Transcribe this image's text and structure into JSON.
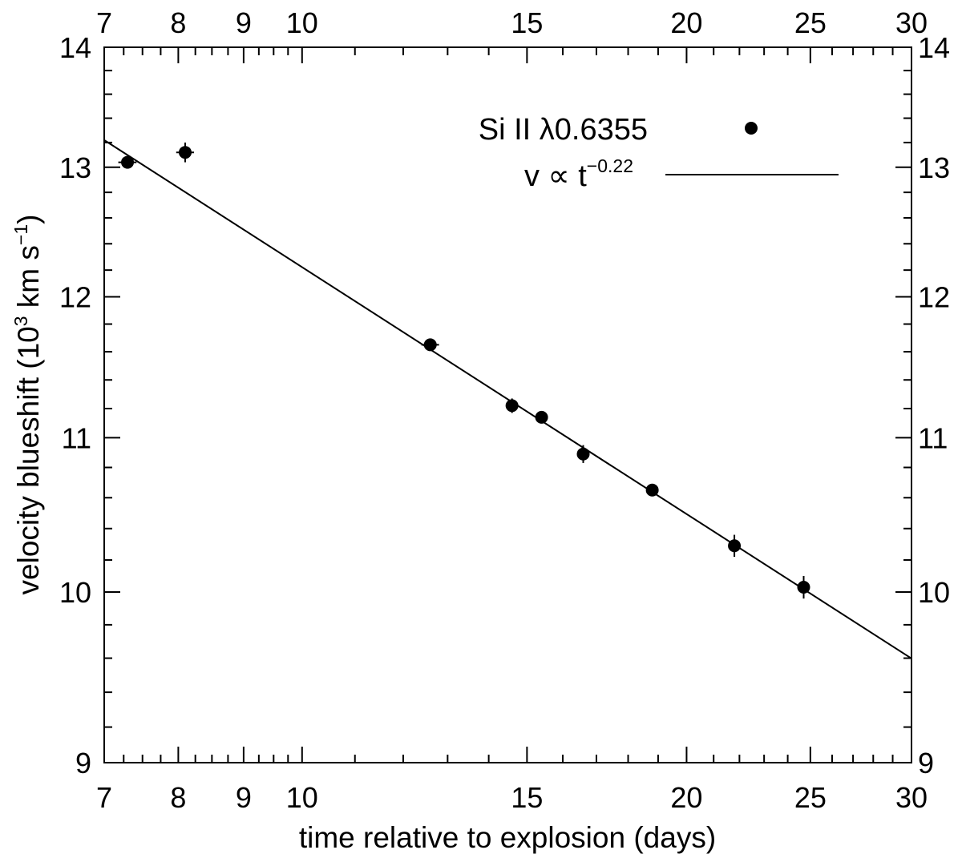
{
  "chart_data": {
    "type": "scatter",
    "title": "",
    "xlabel": "time relative to explosion (days)",
    "ylabel": {
      "prefix": "velocity blueshift (10",
      "exp1": "3",
      "mid": " km s",
      "exp2": "−1",
      "suffix": ")"
    },
    "x_scale": "log",
    "y_scale": "log",
    "xlim": [
      7,
      30
    ],
    "ylim": [
      9,
      14
    ],
    "x_ticks_major": [
      7,
      8,
      9,
      10,
      15,
      20,
      25,
      30
    ],
    "x_ticks_minor": [
      7.25,
      7.5,
      7.75,
      8.25,
      8.5,
      8.75,
      9.25,
      9.5,
      9.75,
      11,
      12,
      13,
      14,
      16,
      17,
      18,
      19,
      21,
      22,
      23,
      24,
      26,
      27,
      28,
      29
    ],
    "y_ticks_major": [
      9,
      10,
      11,
      12,
      13,
      14
    ],
    "y_ticks_minor": [
      9.2,
      9.4,
      9.6,
      9.8,
      10.2,
      10.4,
      10.6,
      10.8,
      11.2,
      11.4,
      11.6,
      11.8,
      12.2,
      12.4,
      12.6,
      12.8,
      13.2,
      13.4,
      13.6,
      13.8
    ],
    "top_axis_labels": true,
    "right_axis_labels": true,
    "series": [
      {
        "name": "Si II λ0.6355",
        "kind": "points",
        "marker": "filled-circle",
        "color": "#000000",
        "points": [
          {
            "x": 7.3,
            "y": 13.04,
            "xerr": 0.12,
            "yerr": 0.0
          },
          {
            "x": 8.1,
            "y": 13.12,
            "xerr": 0.13,
            "yerr": 0.08
          },
          {
            "x": 12.6,
            "y": 11.65,
            "xerr": 0.2,
            "yerr": 0.0
          },
          {
            "x": 14.6,
            "y": 11.22,
            "xerr": 0.0,
            "yerr": 0.05
          },
          {
            "x": 15.4,
            "y": 11.14,
            "xerr": 0.0,
            "yerr": 0.0
          },
          {
            "x": 16.6,
            "y": 10.89,
            "xerr": 0.0,
            "yerr": 0.06
          },
          {
            "x": 18.8,
            "y": 10.65,
            "xerr": 0.0,
            "yerr": 0.0
          },
          {
            "x": 21.8,
            "y": 10.29,
            "xerr": 0.0,
            "yerr": 0.07
          },
          {
            "x": 24.7,
            "y": 10.03,
            "xerr": 0.0,
            "yerr": 0.07
          }
        ]
      },
      {
        "name": "v ∝ t−0.22",
        "kind": "power-law-fit",
        "exponent": -0.22,
        "anchor": {
          "x": 7.0,
          "y": 13.22
        },
        "color": "#000000"
      }
    ],
    "legend": {
      "placement": "top-right",
      "entries": [
        {
          "text": "Si II λ0.6355",
          "symbol": "filled-circle"
        },
        {
          "base": "v ∝ t",
          "exponent": "−0.22",
          "symbol": "line"
        }
      ]
    }
  }
}
